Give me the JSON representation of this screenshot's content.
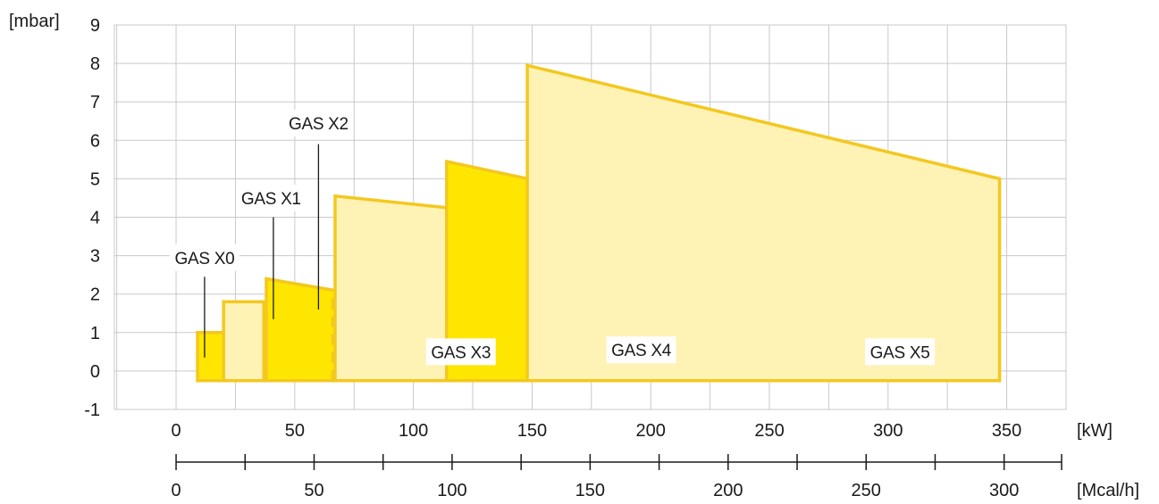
{
  "chart_data": {
    "type": "area",
    "ylabel": "[mbar]",
    "xlabel": "[kW]",
    "x2label": "[Mcal/h]",
    "xlim": [
      -26,
      375
    ],
    "ylim": [
      -1,
      9
    ],
    "yticks": [
      -1,
      0,
      1,
      2,
      3,
      4,
      5,
      6,
      7,
      8,
      9
    ],
    "xticks": [
      0,
      50,
      100,
      150,
      200,
      250,
      300,
      350
    ],
    "x2ticks": [
      0,
      50,
      100,
      150,
      200,
      250,
      300
    ],
    "x2minor": [
      25,
      75,
      125,
      175,
      225,
      275
    ],
    "grid": true,
    "colors": {
      "light": "#FEF2B5",
      "dark": "#FFE600",
      "stroke": "#F3C81F",
      "grid": "#c9c9c9"
    },
    "series": [
      {
        "name": "GAS X0",
        "shade": "dark",
        "points": [
          [
            9,
            -0.25
          ],
          [
            9,
            1
          ],
          [
            31,
            1
          ],
          [
            31,
            -0.25
          ]
        ],
        "dashed_x": []
      },
      {
        "name": "GAS X1",
        "shade": "light",
        "points": [
          [
            20,
            -0.25
          ],
          [
            20,
            1.8
          ],
          [
            37,
            1.8
          ],
          [
            37,
            1.8
          ],
          [
            37,
            -0.25
          ]
        ],
        "dashed_x": []
      },
      {
        "name": "GAS X1",
        "shade": "light",
        "points": [
          [
            37,
            -0.25
          ],
          [
            37,
            1.8
          ],
          [
            46,
            1.8
          ],
          [
            54,
            1.2
          ],
          [
            54,
            -0.25
          ]
        ],
        "dashed_x": []
      },
      {
        "name": "GAS X2",
        "shade": "dark",
        "points": [
          [
            38,
            -0.25
          ],
          [
            38,
            2.4
          ],
          [
            76,
            2
          ],
          [
            90,
            1
          ],
          [
            90,
            -0.25
          ]
        ],
        "dashed_x": [
          66
        ]
      },
      {
        "name": "GAS X3",
        "shade": "light",
        "points": [
          [
            67,
            -0.25
          ],
          [
            67,
            4.55
          ],
          [
            137,
            4.1
          ],
          [
            171,
            1.5
          ],
          [
            171,
            -0.25
          ]
        ],
        "dashed_x": [
          114
        ]
      },
      {
        "name": "GAS X4",
        "shade": "dark",
        "points": [
          [
            114,
            -0.25
          ],
          [
            114,
            5.45
          ],
          [
            194,
            4.4
          ],
          [
            229,
            2.5
          ],
          [
            229,
            -0.25
          ]
        ],
        "dashed_x": [
          148
        ]
      },
      {
        "name": "GAS X5",
        "shade": "light",
        "points": [
          [
            148,
            -0.25
          ],
          [
            148,
            7.95
          ],
          [
            347,
            5
          ],
          [
            347,
            -0.25
          ]
        ],
        "dashed_x": []
      }
    ],
    "annotations": [
      {
        "text": "GAS X0",
        "x": 12,
        "y": 2.95,
        "pointer": [
          12,
          2.45,
          12,
          0.35
        ]
      },
      {
        "text": "GAS X1",
        "x": 40,
        "y": 4.5,
        "pointer": [
          41,
          4.0,
          41,
          1.35
        ]
      },
      {
        "text": "GAS X2",
        "x": 60,
        "y": 6.45,
        "pointer": [
          60,
          5.9,
          60,
          1.6
        ]
      },
      {
        "text": "GAS X3",
        "x": 120,
        "y": 0.5,
        "pointer": null
      },
      {
        "text": "GAS X4",
        "x": 196,
        "y": 0.55,
        "pointer": null
      },
      {
        "text": "GAS X5",
        "x": 305,
        "y": 0.5,
        "pointer": null
      }
    ]
  }
}
